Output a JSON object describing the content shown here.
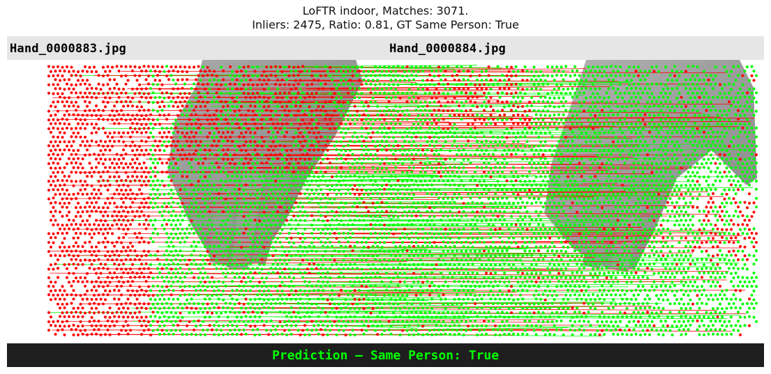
{
  "title": {
    "line1": "LoFTR indoor, Matches: 3071.",
    "line2": "Inliers: 2475, Ratio: 0.81, GT Same Person: True"
  },
  "images": {
    "left_filename": "Hand_0000883.jpg",
    "right_filename": "Hand_0000884.jpg"
  },
  "prediction_text": "Prediction — Same Person: True",
  "colors": {
    "inlier": "#00ff00",
    "outlier": "#ff0000",
    "header_bg": "#e6e6e6",
    "footer_bg": "#1e1e1e"
  }
}
